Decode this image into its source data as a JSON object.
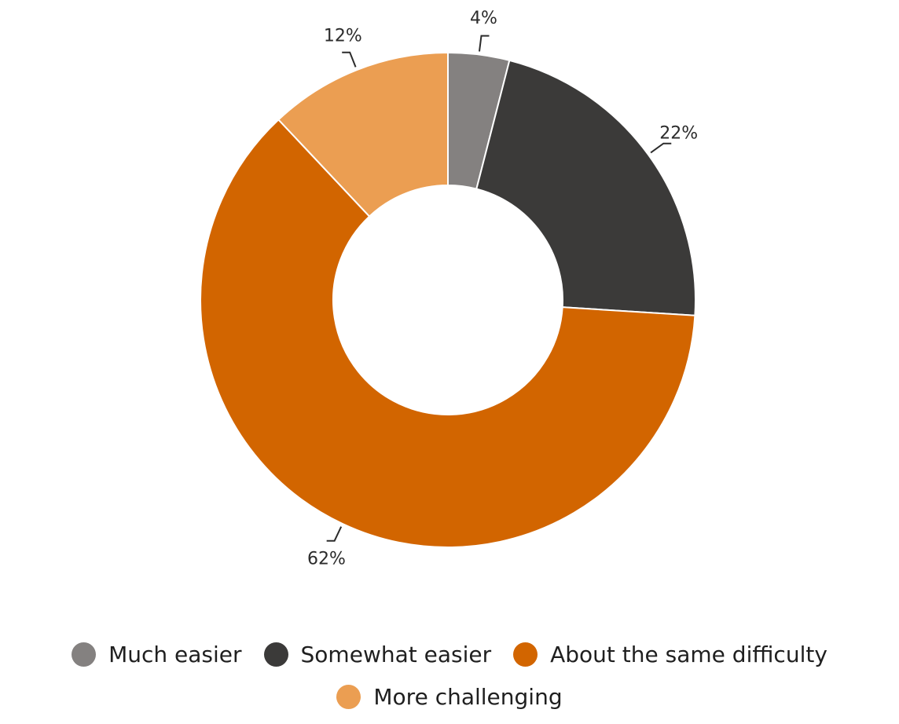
{
  "chart_data": {
    "type": "pie",
    "variant": "donut",
    "categories": [
      "Much easier",
      "Somewhat easier",
      "About the same difficulty",
      "More challenging"
    ],
    "values": [
      4,
      22,
      62,
      12
    ],
    "labels": [
      "4%",
      "22%",
      "62%",
      "12%"
    ],
    "unit": "%",
    "colors": [
      "#848180",
      "#3b3a39",
      "#d26500",
      "#eb9e52"
    ],
    "legend_position": "bottom",
    "title": ""
  }
}
